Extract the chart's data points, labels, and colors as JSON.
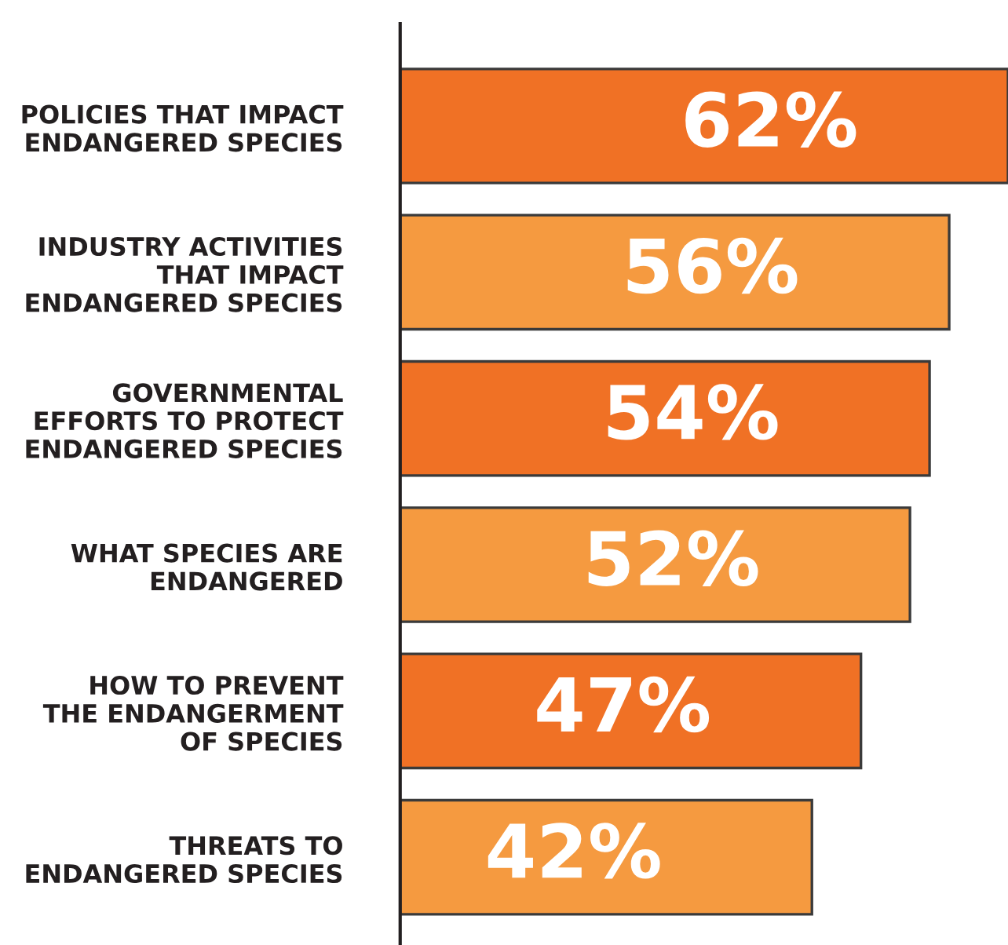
{
  "chart_data": {
    "type": "bar",
    "orientation": "horizontal",
    "categories": [
      "POLICIES THAT IMPACT\nENDANGERED SPECIES",
      "INDUSTRY ACTIVITIES\nTHAT IMPACT\nENDANGERED SPECIES",
      "GOVERNMENTAL\nEFFORTS TO PROTECT\nENDANGERED SPECIES",
      "WHAT SPECIES ARE\nENDANGERED",
      "HOW TO PREVENT\nTHE ENDANGERMENT\nOF SPECIES",
      "THREATS TO\nENDANGERED SPECIES"
    ],
    "values": [
      62,
      56,
      54,
      52,
      47,
      42
    ],
    "colors": [
      "#f07125",
      "#f59a40",
      "#f07125",
      "#f59a40",
      "#f07125",
      "#f59a40"
    ],
    "value_labels": [
      "62%",
      "56%",
      "54%",
      "52%",
      "47%",
      "42%"
    ],
    "grid": false,
    "legend": false
  }
}
